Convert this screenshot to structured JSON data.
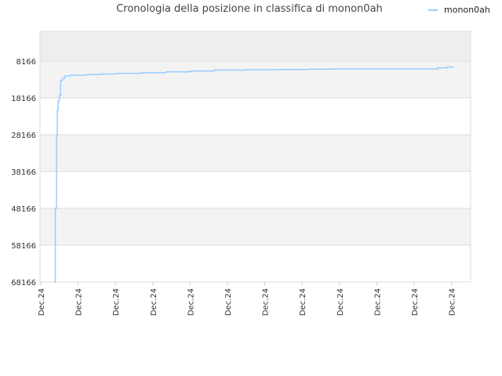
{
  "chart_data": {
    "type": "line",
    "title": "Cronologia della posizione in classifica di monon0ah",
    "xlabel": "",
    "ylabel": "",
    "y_inverted": true,
    "ylim": [
      8166,
      68166
    ],
    "y_ticks": [
      "8166",
      "18166",
      "28166",
      "38166",
      "48166",
      "58166",
      "68166"
    ],
    "x_tick_labels": [
      "Dec.24",
      "Dec.24",
      "Dec.24",
      "Dec.24",
      "Dec.24",
      "Dec.24",
      "Dec.24",
      "Dec.24",
      "Dec.24",
      "Dec.24",
      "Dec.24",
      "Dec.24"
    ],
    "grid": true,
    "legend_position": "top-right",
    "line_color": "#99ccff",
    "series": [
      {
        "name": "monon0ah",
        "points": [
          [
            0.0,
            68166
          ],
          [
            0.003,
            48166
          ],
          [
            0.006,
            28166
          ],
          [
            0.008,
            21500
          ],
          [
            0.01,
            19000
          ],
          [
            0.013,
            17500
          ],
          [
            0.016,
            13500
          ],
          [
            0.02,
            12900
          ],
          [
            0.026,
            12200
          ],
          [
            0.04,
            12000
          ],
          [
            0.08,
            11800
          ],
          [
            0.12,
            11650
          ],
          [
            0.16,
            11500
          ],
          [
            0.22,
            11300
          ],
          [
            0.28,
            11100
          ],
          [
            0.34,
            10850
          ],
          [
            0.4,
            10600
          ],
          [
            0.48,
            10500
          ],
          [
            0.56,
            10450
          ],
          [
            0.64,
            10350
          ],
          [
            0.7,
            10300
          ],
          [
            0.78,
            10300
          ],
          [
            0.86,
            10300
          ],
          [
            0.93,
            10300
          ],
          [
            0.96,
            10000
          ],
          [
            0.985,
            9800
          ],
          [
            1.0,
            9700
          ]
        ]
      }
    ]
  }
}
